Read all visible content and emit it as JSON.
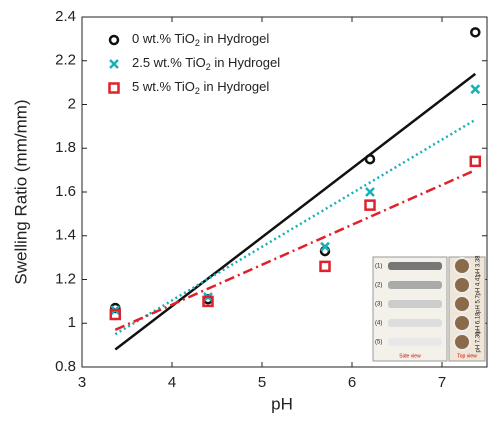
{
  "chart_data": {
    "type": "scatter",
    "x_label": "pH",
    "y_label": "Swelling Ratio (mm/mm)",
    "x": [
      3.37,
      4.4,
      5.7,
      6.2,
      7.37
    ],
    "series": [
      {
        "name": "0 wt.% TiO2 in Hydrogel",
        "color": "#111111",
        "marker": "circle",
        "values": [
          1.07,
          1.11,
          1.33,
          1.75,
          2.33
        ]
      },
      {
        "name": "2.5 wt.% TiO2 in Hydrogel",
        "color": "#1ab0b8",
        "marker": "x",
        "values": [
          1.06,
          1.12,
          1.35,
          1.6,
          2.07
        ]
      },
      {
        "name": "5 wt.% TiO2 in Hydrogel",
        "color": "#e0202a",
        "marker": "square",
        "values": [
          1.04,
          1.1,
          1.26,
          1.54,
          1.74
        ]
      }
    ],
    "fits": [
      {
        "color": "#111111",
        "dash": "solid",
        "x": [
          3.37,
          7.37
        ],
        "values": [
          0.88,
          2.14
        ]
      },
      {
        "color": "#1ab0b8",
        "dash": "dotted",
        "x": [
          3.37,
          7.37
        ],
        "values": [
          0.95,
          1.93
        ]
      },
      {
        "color": "#e0202a",
        "dash": "dashdot",
        "x": [
          3.37,
          7.37
        ],
        "values": [
          0.97,
          1.7
        ]
      }
    ],
    "xlim": [
      3,
      7.5
    ],
    "xticks": [
      3,
      4,
      5,
      6,
      7
    ],
    "ylim": [
      0.8,
      2.4
    ],
    "yticks": [
      0.8,
      1,
      1.2,
      1.4,
      1.6,
      1.8,
      2,
      2.2,
      2.4
    ],
    "legend": "upper left",
    "inset": {
      "rows": [
        "(1)",
        "(2)",
        "(3)",
        "(4)",
        "(5)"
      ],
      "ph": [
        "pH 3.38",
        "pH 4.41",
        "pH 5.7",
        "pH 6.18",
        "pH 7.36"
      ],
      "side": "Side view",
      "top": "Top view"
    }
  }
}
